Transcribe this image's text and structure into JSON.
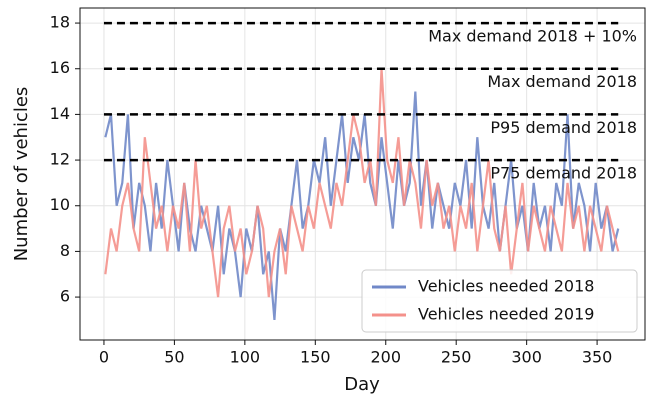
{
  "chart_data": {
    "type": "line",
    "x_label": "Day",
    "y_label": "Number of vehicles",
    "xlim": [
      -17,
      384
    ],
    "ylim": [
      4.12,
      18.66
    ],
    "xticks": [
      0,
      50,
      100,
      150,
      200,
      250,
      300,
      350
    ],
    "yticks": [
      6,
      8,
      10,
      12,
      14,
      16,
      18
    ],
    "grid": true,
    "legend": "lower right",
    "x": [
      1,
      5,
      9,
      13,
      17,
      21,
      25,
      29,
      33,
      37,
      41,
      45,
      49,
      53,
      57,
      61,
      65,
      69,
      73,
      77,
      81,
      85,
      89,
      93,
      97,
      101,
      105,
      109,
      113,
      117,
      121,
      125,
      129,
      133,
      137,
      141,
      145,
      149,
      153,
      157,
      161,
      165,
      169,
      173,
      177,
      181,
      185,
      189,
      193,
      197,
      201,
      205,
      209,
      213,
      217,
      221,
      225,
      229,
      233,
      237,
      241,
      245,
      249,
      253,
      257,
      261,
      265,
      269,
      273,
      277,
      281,
      285,
      289,
      293,
      297,
      301,
      305,
      309,
      313,
      317,
      321,
      325,
      329,
      333,
      337,
      341,
      345,
      349,
      353,
      357,
      361,
      365
    ],
    "series": [
      {
        "name": "Vehicles needed 2018",
        "color": "#7088c8",
        "values": [
          13,
          14,
          10,
          11,
          14,
          9,
          11,
          10,
          8,
          11,
          9,
          12,
          10,
          8,
          11,
          9,
          8,
          10,
          9,
          8,
          10,
          7,
          9,
          8,
          6,
          9,
          8,
          10,
          7,
          8,
          5,
          9,
          8,
          10,
          12,
          9,
          10,
          12,
          11,
          13,
          10,
          12,
          14,
          11,
          13,
          12,
          14,
          11,
          10,
          13,
          11,
          9,
          12,
          10,
          11,
          15,
          10,
          12,
          9,
          11,
          10,
          9,
          11,
          10,
          12,
          9,
          13,
          10,
          9,
          11,
          8,
          10,
          12,
          9,
          10,
          8,
          11,
          9,
          10,
          8,
          11,
          10,
          14,
          9,
          11,
          10,
          8,
          11,
          9,
          10,
          8,
          9
        ]
      },
      {
        "name": "Vehicles needed 2019",
        "color": "#f4918b",
        "values": [
          7,
          9,
          8,
          10,
          11,
          9,
          8,
          13,
          11,
          9,
          10,
          8,
          10,
          9,
          11,
          8,
          12,
          9,
          10,
          8,
          6,
          9,
          10,
          8,
          9,
          7,
          8,
          10,
          9,
          6,
          8,
          9,
          7,
          10,
          9,
          8,
          10,
          9,
          11,
          10,
          9,
          11,
          10,
          12,
          14,
          13,
          11,
          12,
          10,
          16,
          12,
          11,
          13,
          10,
          12,
          11,
          9,
          12,
          10,
          11,
          9,
          10,
          8,
          10,
          9,
          11,
          8,
          10,
          12,
          9,
          8,
          10,
          7,
          9,
          11,
          8,
          10,
          9,
          8,
          10,
          9,
          8,
          11,
          9,
          10,
          8,
          10,
          9,
          8,
          10,
          9,
          8
        ]
      }
    ],
    "hlines": [
      {
        "value": 18,
        "label": "Max demand 2018 + 10%"
      },
      {
        "value": 16,
        "label": "Max demand 2018"
      },
      {
        "value": 14,
        "label": "P95 demand 2018"
      },
      {
        "value": 12,
        "label": "P75 demand 2018"
      }
    ]
  }
}
